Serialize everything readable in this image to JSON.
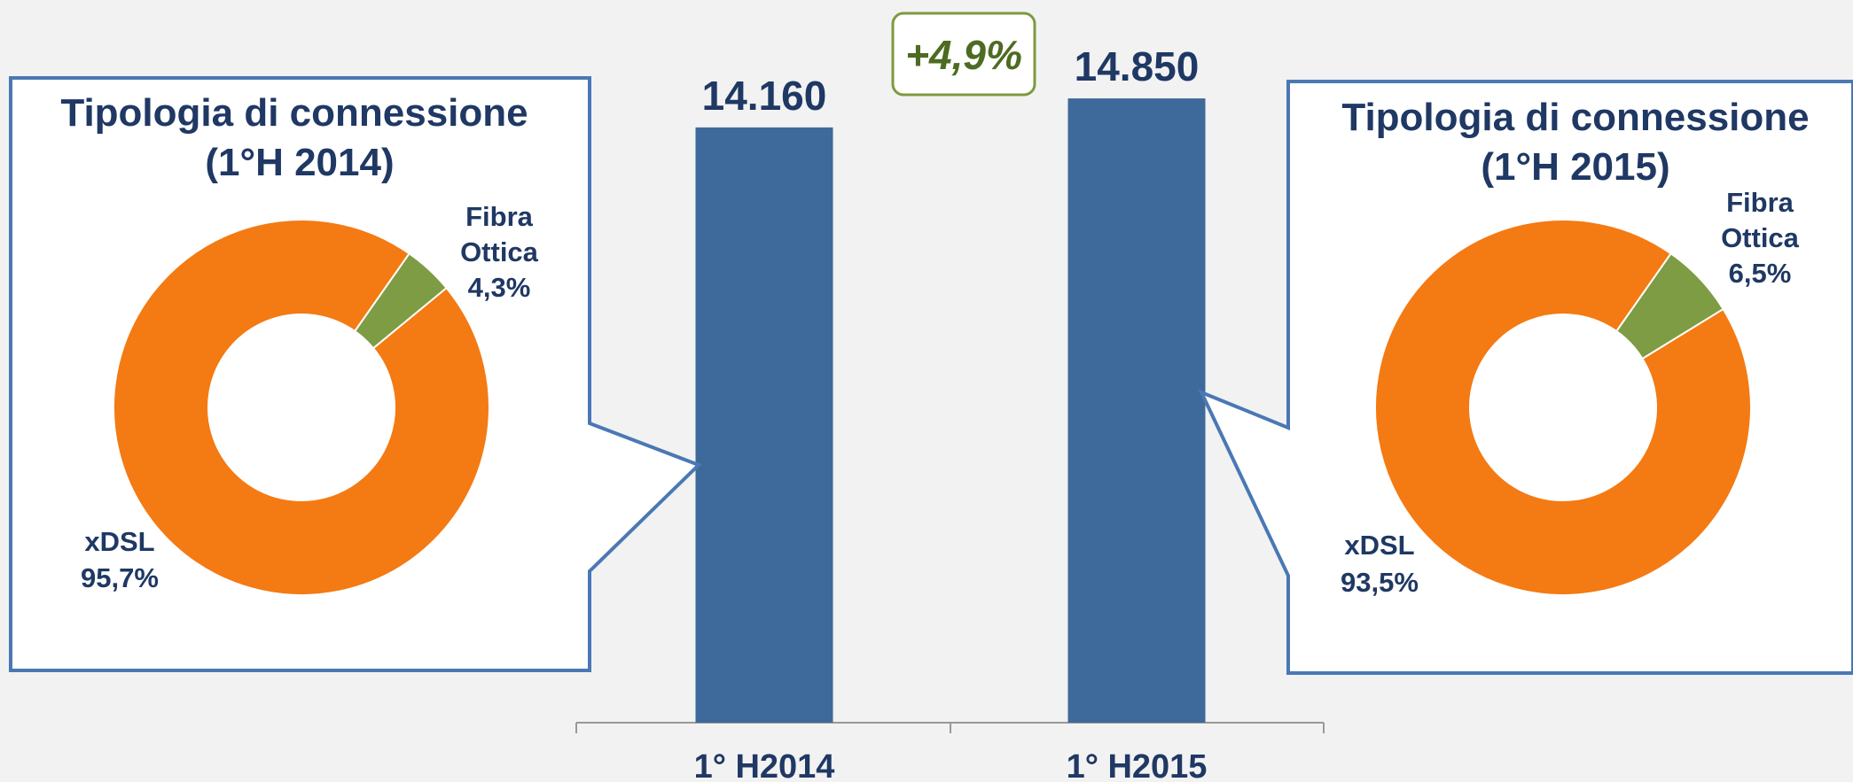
{
  "chart_data": [
    {
      "type": "bar",
      "categories": [
        "1° H2014",
        "1° H2015"
      ],
      "values": [
        14160,
        14850
      ],
      "data_labels": [
        "14.160",
        "14.850"
      ],
      "ylim": [
        0,
        15000
      ],
      "annotation": "+4,9%",
      "color": "#3e6a9b"
    },
    {
      "type": "pie",
      "title_line1": "Tipologia di connessione",
      "title_line2": "(1°H 2014)",
      "slices": [
        {
          "name": "xDSL",
          "value": 95.7,
          "label": "95,7%",
          "color": "#f47a13"
        },
        {
          "name_line1": "Fibra",
          "name_line2": "Ottica",
          "value": 4.3,
          "label": "4,3%",
          "color": "#7d9c43"
        }
      ]
    },
    {
      "type": "pie",
      "title_line1": "Tipologia di connessione",
      "title_line2": "(1°H 2015)",
      "slices": [
        {
          "name": "xDSL",
          "value": 93.5,
          "label": "93,5%",
          "color": "#f47a13"
        },
        {
          "name_line1": "Fibra",
          "name_line2": "Ottica",
          "value": 6.5,
          "label": "6,5%",
          "color": "#7d9c43"
        }
      ]
    }
  ]
}
